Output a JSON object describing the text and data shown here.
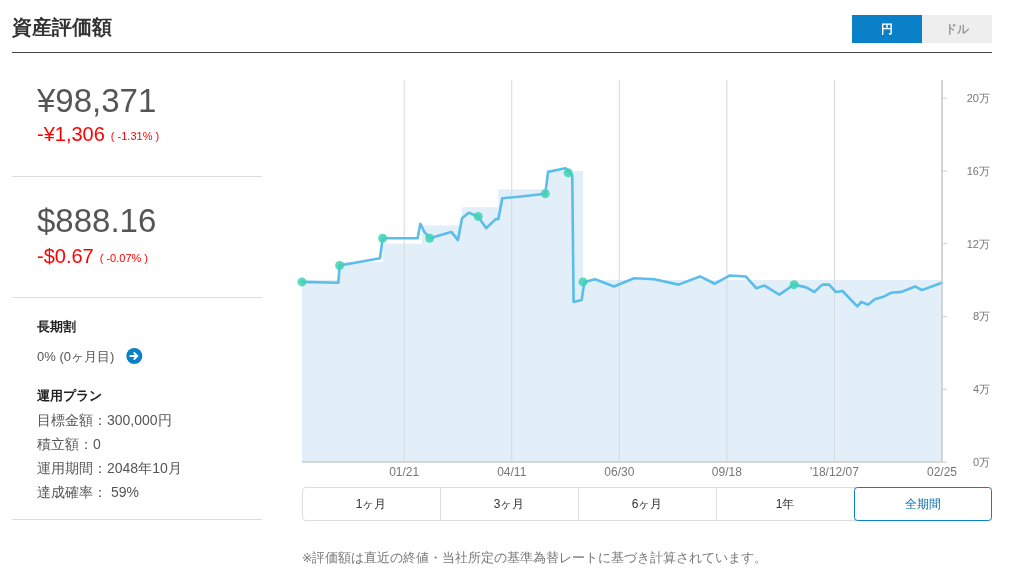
{
  "chart_data": [
    {
      "type": "other",
      "title": "資産評価額",
      "annotations": [
        "¥98,371",
        "-¥1,306",
        "( -1.31% )",
        "$888.16",
        "-$0.67",
        "( -0.07% )",
        "長期割",
        "0% (0ヶ月目)",
        "運用プラン",
        "目標金額：300,000円",
        "積立額：0",
        "運用期間：2048年10月",
        "達成確率： 59%"
      ]
    },
    {
      "type": "line",
      "grid": "x",
      "xlim": [
        "2017-11-06",
        "2019-02-25"
      ],
      "xticks": [
        {
          "value": "2018-01-21",
          "label": "01/21"
        },
        {
          "value": "2018-04-11",
          "label": "04/11"
        },
        {
          "value": "2018-06-30",
          "label": "06/30"
        },
        {
          "value": "2018-09-18",
          "label": "09/18"
        },
        {
          "value": "2018-12-07",
          "label": "'18/12/07"
        },
        {
          "value": "2019-02-25",
          "label": "02/25"
        }
      ],
      "ylim": [
        0,
        21
      ],
      "yticks": [
        {
          "value": 0,
          "label": "0万"
        },
        {
          "value": 4,
          "label": "4万"
        },
        {
          "value": 8,
          "label": "8万"
        },
        {
          "value": 12,
          "label": "12万"
        },
        {
          "value": 16,
          "label": "16万"
        },
        {
          "value": 20,
          "label": "20万"
        }
      ],
      "annotations": [
        "円",
        "ドル",
        "1ヶ月",
        "3ヶ月",
        "6ヶ月",
        "1年",
        "全期間",
        "※評価額は直近の終値・当社所定の基準為替レートに基づき計算されています。"
      ],
      "series": [
        {
          "type": "area",
          "color": "#e2eff9",
          "x": [
            "2017-11-06",
            "2017-12-04",
            "2017-12-04",
            "2018-01-05",
            "2018-01-05",
            "2018-02-03",
            "2018-02-03",
            "2018-03-05",
            "2018-03-05",
            "2018-04-01",
            "2018-04-01",
            "2018-05-08",
            "2018-05-08",
            "2018-06-03",
            "2018-06-03",
            "2019-02-25"
          ],
          "values": [
            10,
            10,
            11,
            11,
            12,
            12,
            13,
            13,
            14,
            14,
            15,
            15,
            16,
            16,
            10,
            10
          ]
        },
        {
          "type": "line",
          "color": "#5bbdea",
          "x": [
            "2017-11-06",
            "2017-12-03",
            "2017-12-04",
            "2018-01-03",
            "2018-01-05",
            "2018-01-31",
            "2018-02-02",
            "2018-02-05",
            "2018-02-09",
            "2018-02-25",
            "2018-03-02",
            "2018-03-05",
            "2018-03-10",
            "2018-03-17",
            "2018-03-23",
            "2018-03-30",
            "2018-04-01",
            "2018-04-04",
            "2018-04-18",
            "2018-05-06",
            "2018-05-08",
            "2018-05-21",
            "2018-05-26",
            "2018-05-27",
            "2018-06-02",
            "2018-06-04",
            "2018-06-12",
            "2018-06-26",
            "2018-07-11",
            "2018-07-26",
            "2018-08-13",
            "2018-08-29",
            "2018-09-09",
            "2018-09-20",
            "2018-10-02",
            "2018-10-10",
            "2018-10-16",
            "2018-10-27",
            "2018-11-07",
            "2018-11-16",
            "2018-11-22",
            "2018-11-28",
            "2018-12-03",
            "2018-12-08",
            "2018-12-13",
            "2018-12-24",
            "2018-12-27",
            "2019-01-01",
            "2019-01-06",
            "2019-01-13",
            "2019-01-18",
            "2019-01-26",
            "2019-02-05",
            "2019-02-10",
            "2019-02-25"
          ],
          "values": [
            9.9,
            9.85,
            10.8,
            11.2,
            12.3,
            12.3,
            13.1,
            12.65,
            12.3,
            12.65,
            12.2,
            13.4,
            13.7,
            13.5,
            12.85,
            13.35,
            13.35,
            14.5,
            14.6,
            14.75,
            15.95,
            16.15,
            15.75,
            8.8,
            8.9,
            9.9,
            10.05,
            9.65,
            10.1,
            10.05,
            9.75,
            10.2,
            9.8,
            10.25,
            10.2,
            9.55,
            9.7,
            9.2,
            9.75,
            9.6,
            9.35,
            9.75,
            9.75,
            9.35,
            9.4,
            8.55,
            8.8,
            8.65,
            8.95,
            9.1,
            9.3,
            9.35,
            9.65,
            9.45,
            9.85
          ]
        },
        {
          "type": "scatter",
          "color": "#3ed3b1",
          "x": [
            "2017-11-06",
            "2017-12-04",
            "2018-01-05",
            "2018-02-09",
            "2018-03-17",
            "2018-05-06",
            "2018-05-23",
            "2018-06-03",
            "2018-11-07"
          ],
          "values": [
            9.9,
            10.8,
            12.3,
            12.3,
            13.5,
            14.75,
            15.9,
            9.9,
            9.75
          ]
        }
      ]
    }
  ]
}
